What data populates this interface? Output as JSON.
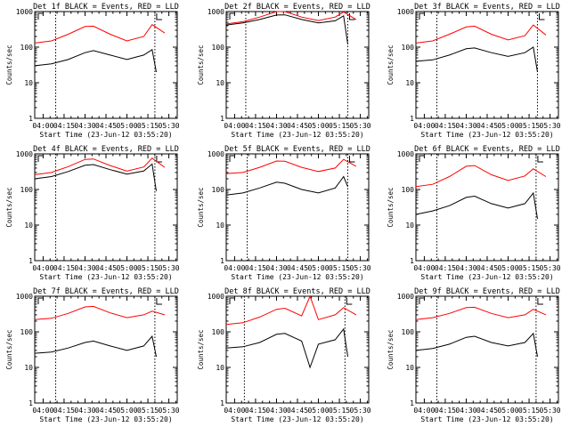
{
  "chart_data": {
    "type": "line",
    "yscale": "log",
    "ylim": [
      1,
      1000
    ],
    "y_tick_labels": [
      "1",
      "10",
      "100",
      "1000"
    ],
    "x_tick_labels": [
      "04:00",
      "04:15",
      "04:30",
      "04:45",
      "05:00",
      "05:15",
      "05:30"
    ],
    "xlabel": "Start Time (23-Jun-12 03:55:20)",
    "ylabel": "Counts/sec",
    "colors": {
      "events": "#000000",
      "lld": "#ff0000"
    },
    "panels": [
      {
        "title": "Det 1f BLACK = Events, RED = LLD",
        "markers": [
          "04:09",
          "05:20"
        ],
        "events": [
          [
            3.9,
            30
          ],
          [
            4.1,
            34
          ],
          [
            4.3,
            45
          ],
          [
            4.5,
            70
          ],
          [
            4.6,
            80
          ],
          [
            4.8,
            60
          ],
          [
            5.0,
            45
          ],
          [
            5.2,
            60
          ],
          [
            5.3,
            85
          ],
          [
            5.35,
            20
          ]
        ],
        "lld": [
          [
            3.9,
            130
          ],
          [
            4.1,
            150
          ],
          [
            4.3,
            230
          ],
          [
            4.5,
            380
          ],
          [
            4.6,
            390
          ],
          [
            4.8,
            230
          ],
          [
            5.0,
            150
          ],
          [
            5.2,
            200
          ],
          [
            5.3,
            430
          ],
          [
            5.45,
            250
          ]
        ]
      },
      {
        "title": "Det 2f BLACK = Events, RED = LLD",
        "markers": [
          "04:08",
          "05:21"
        ],
        "events": [
          [
            3.9,
            420
          ],
          [
            4.1,
            480
          ],
          [
            4.3,
            600
          ],
          [
            4.5,
            800
          ],
          [
            4.6,
            810
          ],
          [
            4.8,
            600
          ],
          [
            5.0,
            480
          ],
          [
            5.2,
            550
          ],
          [
            5.3,
            760
          ],
          [
            5.35,
            120
          ]
        ],
        "lld": [
          [
            3.9,
            450
          ],
          [
            4.1,
            520
          ],
          [
            4.3,
            700
          ],
          [
            4.5,
            1000
          ],
          [
            4.6,
            1020
          ],
          [
            4.8,
            700
          ],
          [
            5.0,
            560
          ],
          [
            5.2,
            700
          ],
          [
            5.3,
            980
          ],
          [
            5.45,
            600
          ]
        ]
      },
      {
        "title": "Det 3f BLACK = Events, RED = LLD",
        "markers": [
          "04:09",
          "05:21"
        ],
        "events": [
          [
            3.9,
            40
          ],
          [
            4.1,
            44
          ],
          [
            4.3,
            60
          ],
          [
            4.5,
            90
          ],
          [
            4.6,
            95
          ],
          [
            4.8,
            70
          ],
          [
            5.0,
            55
          ],
          [
            5.2,
            70
          ],
          [
            5.3,
            100
          ],
          [
            5.35,
            20
          ]
        ],
        "lld": [
          [
            3.9,
            130
          ],
          [
            4.1,
            150
          ],
          [
            4.3,
            230
          ],
          [
            4.5,
            370
          ],
          [
            4.6,
            390
          ],
          [
            4.8,
            230
          ],
          [
            5.0,
            160
          ],
          [
            5.2,
            210
          ],
          [
            5.3,
            420
          ],
          [
            5.45,
            220
          ]
        ]
      },
      {
        "title": "Det 4f BLACK = Events, RED = LLD",
        "markers": [
          "04:09",
          "05:20"
        ],
        "events": [
          [
            3.9,
            200
          ],
          [
            4.1,
            230
          ],
          [
            4.3,
            320
          ],
          [
            4.5,
            480
          ],
          [
            4.6,
            500
          ],
          [
            4.8,
            360
          ],
          [
            5.0,
            270
          ],
          [
            5.2,
            330
          ],
          [
            5.3,
            520
          ],
          [
            5.35,
            90
          ]
        ],
        "lld": [
          [
            3.9,
            260
          ],
          [
            4.1,
            300
          ],
          [
            4.3,
            440
          ],
          [
            4.5,
            700
          ],
          [
            4.6,
            720
          ],
          [
            4.8,
            470
          ],
          [
            5.0,
            330
          ],
          [
            5.2,
            430
          ],
          [
            5.3,
            760
          ],
          [
            5.45,
            420
          ]
        ]
      },
      {
        "title": "Det 5f BLACK = Events, RED = LLD",
        "markers": [
          "04:09",
          "05:21"
        ],
        "events": [
          [
            3.9,
            70
          ],
          [
            4.1,
            80
          ],
          [
            4.3,
            110
          ],
          [
            4.5,
            160
          ],
          [
            4.6,
            150
          ],
          [
            4.8,
            100
          ],
          [
            5.0,
            80
          ],
          [
            5.2,
            110
          ],
          [
            5.3,
            230
          ],
          [
            5.35,
            120
          ]
        ],
        "lld": [
          [
            3.9,
            280
          ],
          [
            4.1,
            300
          ],
          [
            4.3,
            420
          ],
          [
            4.5,
            630
          ],
          [
            4.6,
            620
          ],
          [
            4.8,
            420
          ],
          [
            5.0,
            320
          ],
          [
            5.2,
            400
          ],
          [
            5.3,
            700
          ],
          [
            5.45,
            450
          ]
        ]
      },
      {
        "title": "Det 6f BLACK = Events, RED = LLD",
        "markers": [
          "04:09",
          "05:20"
        ],
        "events": [
          [
            3.9,
            20
          ],
          [
            4.1,
            25
          ],
          [
            4.3,
            35
          ],
          [
            4.5,
            60
          ],
          [
            4.6,
            65
          ],
          [
            4.8,
            40
          ],
          [
            5.0,
            30
          ],
          [
            5.2,
            40
          ],
          [
            5.3,
            80
          ],
          [
            5.35,
            15
          ]
        ],
        "lld": [
          [
            3.9,
            120
          ],
          [
            4.1,
            140
          ],
          [
            4.3,
            230
          ],
          [
            4.5,
            450
          ],
          [
            4.6,
            470
          ],
          [
            4.8,
            260
          ],
          [
            5.0,
            180
          ],
          [
            5.2,
            240
          ],
          [
            5.3,
            380
          ],
          [
            5.45,
            230
          ]
        ]
      },
      {
        "title": "Det 7f BLACK = Events, RED = LLD",
        "markers": [
          "04:09",
          "05:20"
        ],
        "events": [
          [
            3.9,
            25
          ],
          [
            4.1,
            27
          ],
          [
            4.3,
            35
          ],
          [
            4.5,
            50
          ],
          [
            4.6,
            55
          ],
          [
            4.8,
            40
          ],
          [
            5.0,
            30
          ],
          [
            5.2,
            40
          ],
          [
            5.3,
            75
          ],
          [
            5.35,
            20
          ]
        ],
        "lld": [
          [
            3.9,
            220
          ],
          [
            4.1,
            240
          ],
          [
            4.3,
            330
          ],
          [
            4.5,
            500
          ],
          [
            4.6,
            520
          ],
          [
            4.8,
            340
          ],
          [
            5.0,
            250
          ],
          [
            5.2,
            300
          ],
          [
            5.3,
            380
          ],
          [
            5.45,
            300
          ]
        ]
      },
      {
        "title": "Det 8f BLACK = Events, RED = LLD",
        "markers": [
          "04:07",
          "05:19"
        ],
        "events": [
          [
            3.9,
            35
          ],
          [
            4.1,
            38
          ],
          [
            4.3,
            50
          ],
          [
            4.5,
            85
          ],
          [
            4.6,
            90
          ],
          [
            4.8,
            55
          ],
          [
            4.9,
            10
          ],
          [
            5.0,
            45
          ],
          [
            5.2,
            60
          ],
          [
            5.3,
            120
          ],
          [
            5.35,
            20
          ]
        ],
        "lld": [
          [
            3.9,
            160
          ],
          [
            4.1,
            180
          ],
          [
            4.3,
            260
          ],
          [
            4.5,
            430
          ],
          [
            4.6,
            460
          ],
          [
            4.8,
            280
          ],
          [
            4.9,
            1000
          ],
          [
            5.0,
            220
          ],
          [
            5.2,
            300
          ],
          [
            5.3,
            480
          ],
          [
            5.45,
            300
          ]
        ]
      },
      {
        "title": "Det 9f BLACK = Events, RED = LLD",
        "markers": [
          "04:09",
          "05:20"
        ],
        "events": [
          [
            3.9,
            30
          ],
          [
            4.1,
            34
          ],
          [
            4.3,
            45
          ],
          [
            4.5,
            70
          ],
          [
            4.6,
            75
          ],
          [
            4.8,
            50
          ],
          [
            5.0,
            40
          ],
          [
            5.2,
            50
          ],
          [
            5.3,
            90
          ],
          [
            5.35,
            20
          ]
        ],
        "lld": [
          [
            3.9,
            220
          ],
          [
            4.1,
            250
          ],
          [
            4.3,
            330
          ],
          [
            4.5,
            480
          ],
          [
            4.6,
            490
          ],
          [
            4.8,
            330
          ],
          [
            5.0,
            250
          ],
          [
            5.2,
            300
          ],
          [
            5.3,
            430
          ],
          [
            5.45,
            300
          ]
        ]
      }
    ]
  }
}
